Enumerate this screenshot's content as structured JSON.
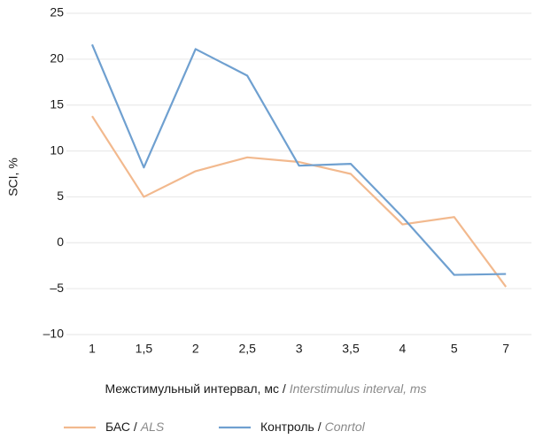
{
  "chart_data": {
    "type": "line",
    "ylabel": "SCI, %",
    "xlabel": [
      "Межстимульный интервал, мс /",
      "Interstimulus interval, ms"
    ],
    "categories": [
      "1",
      "1,5",
      "2",
      "2,5",
      "3",
      "3,5",
      "4",
      "5",
      "7"
    ],
    "series": [
      {
        "name": [
          "БАС /",
          "ALS"
        ],
        "color": "#f2b98e",
        "values": [
          13.8,
          5.0,
          7.8,
          9.3,
          8.8,
          7.5,
          2.0,
          2.8,
          -4.8
        ]
      },
      {
        "name": [
          "Контроль /",
          "Conrtol"
        ],
        "color": "#6fa0d0",
        "values": [
          21.6,
          8.2,
          21.1,
          18.2,
          8.4,
          8.6,
          2.8,
          -3.5,
          -3.4
        ]
      }
    ],
    "ylim": [
      -10,
      25
    ],
    "yticks": [
      {
        "value": -10,
        "label": "–10"
      },
      {
        "value": -5,
        "label": "–5"
      },
      0,
      5,
      10,
      15,
      20,
      25
    ],
    "grid": true
  }
}
